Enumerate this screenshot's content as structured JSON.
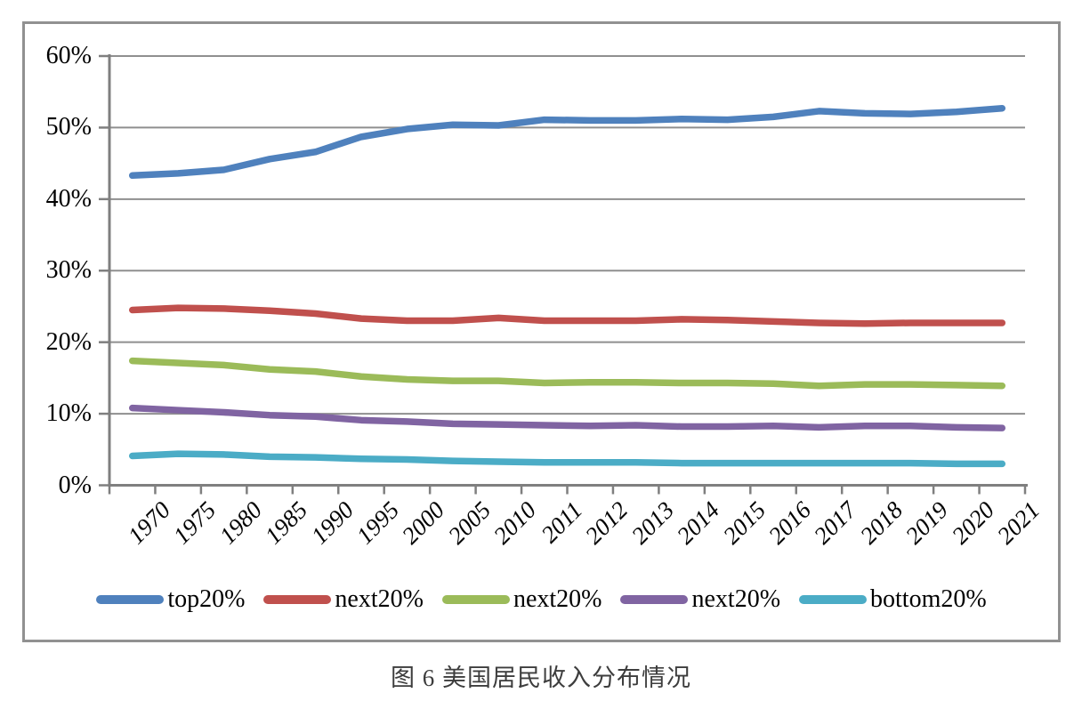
{
  "figure": {
    "caption": "图 6 美国居民收入分布情况"
  },
  "chart_data": {
    "type": "line",
    "title": "",
    "xlabel": "",
    "ylabel": "",
    "ylim": [
      0,
      60
    ],
    "grid": true,
    "legend_position": "bottom",
    "y_tick_labels": [
      "0%",
      "10%",
      "20%",
      "30%",
      "40%",
      "50%",
      "60%"
    ],
    "categories": [
      "1970",
      "1975",
      "1980",
      "1985",
      "1990",
      "1995",
      "2000",
      "2005",
      "2010",
      "2011",
      "2012",
      "2013",
      "2014",
      "2015",
      "2016",
      "2017",
      "2018",
      "2019",
      "2020",
      "2021"
    ],
    "series": [
      {
        "name": "top20%",
        "color": "#4F81BD",
        "values": [
          43.3,
          43.6,
          44.1,
          45.6,
          46.6,
          48.7,
          49.8,
          50.4,
          50.3,
          51.1,
          51.0,
          51.0,
          51.2,
          51.1,
          51.5,
          52.3,
          52.0,
          51.9,
          52.2,
          52.7
        ]
      },
      {
        "name": "next20%",
        "color": "#C0504D",
        "values": [
          24.5,
          24.8,
          24.7,
          24.4,
          24.0,
          23.3,
          23.0,
          23.0,
          23.4,
          23.0,
          23.0,
          23.0,
          23.2,
          23.1,
          22.9,
          22.7,
          22.6,
          22.7,
          22.7,
          22.7
        ]
      },
      {
        "name": "next20%",
        "color": "#9BBB59",
        "values": [
          17.4,
          17.1,
          16.8,
          16.2,
          15.9,
          15.2,
          14.8,
          14.6,
          14.6,
          14.3,
          14.4,
          14.4,
          14.3,
          14.3,
          14.2,
          13.9,
          14.1,
          14.1,
          14.0,
          13.9
        ]
      },
      {
        "name": "next20%",
        "color": "#8064A2",
        "values": [
          10.8,
          10.5,
          10.2,
          9.8,
          9.6,
          9.1,
          8.9,
          8.6,
          8.5,
          8.4,
          8.3,
          8.4,
          8.2,
          8.2,
          8.3,
          8.1,
          8.3,
          8.3,
          8.1,
          8.0
        ]
      },
      {
        "name": "bottom20%",
        "color": "#4BACC6",
        "values": [
          4.1,
          4.4,
          4.3,
          4.0,
          3.9,
          3.7,
          3.6,
          3.4,
          3.3,
          3.2,
          3.2,
          3.2,
          3.1,
          3.1,
          3.1,
          3.1,
          3.1,
          3.1,
          3.0,
          3.0
        ]
      }
    ],
    "style": {
      "gridline_color": "#8F8F8F",
      "axis_color": "#7F7F7F",
      "frame_color": "#919191"
    }
  }
}
